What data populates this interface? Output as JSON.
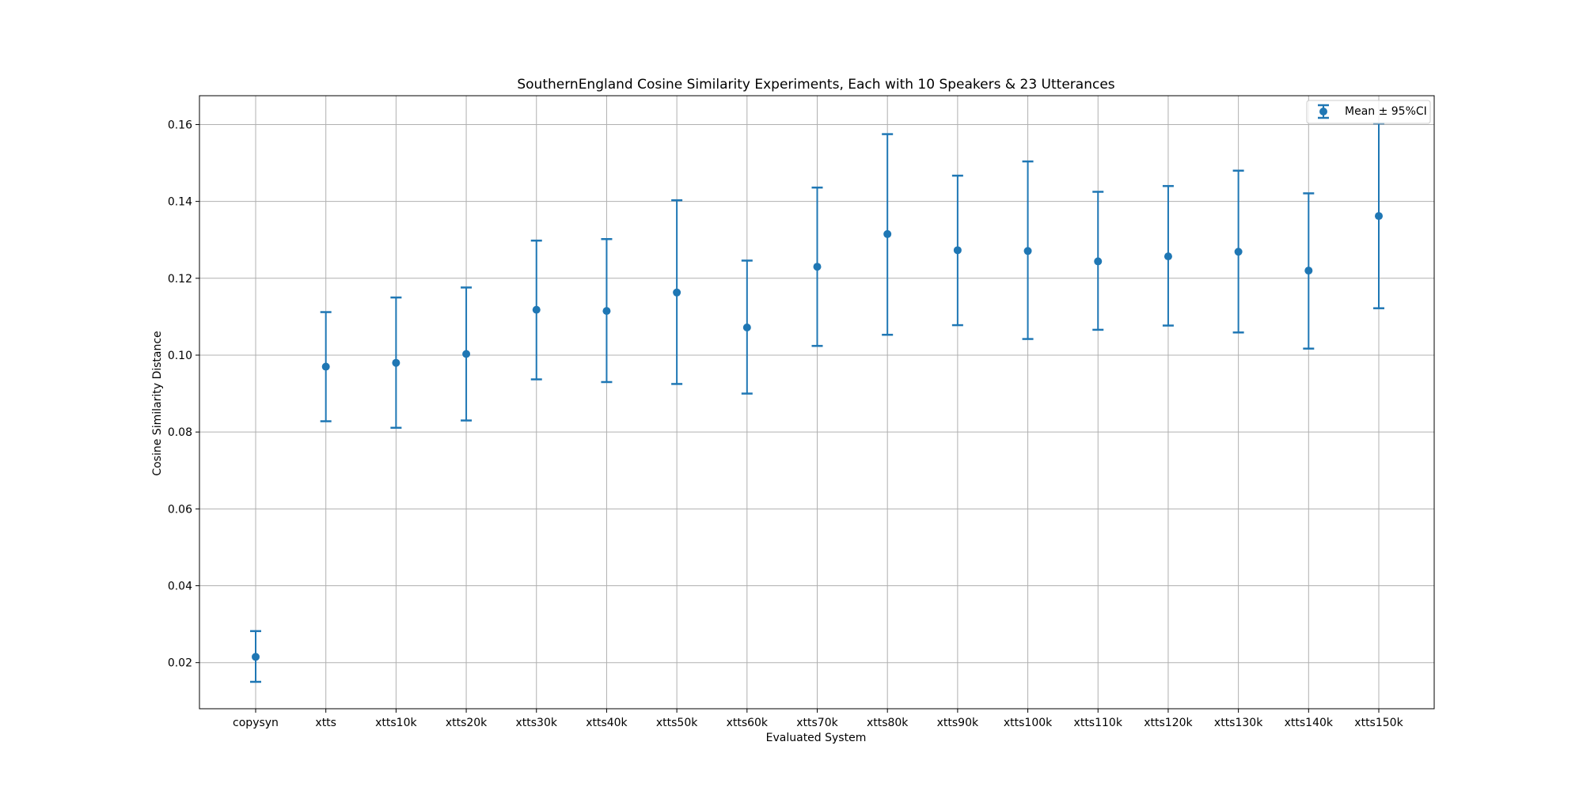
{
  "chart_data": {
    "type": "scatter",
    "title": "SouthernEngland Cosine Similarity Experiments, Each with 10 Speakers & 23 Utterances",
    "xlabel": "Evaluated System",
    "ylabel": "Cosine Similarity Distance",
    "ylim": [
      0.008,
      0.1675
    ],
    "yticks": [
      0.02,
      0.04,
      0.06,
      0.08,
      0.1,
      0.12,
      0.14,
      0.16
    ],
    "ytick_labels": [
      "0.02",
      "0.04",
      "0.06",
      "0.08",
      "0.10",
      "0.12",
      "0.14",
      "0.16"
    ],
    "grid": true,
    "legend_position": "top-right",
    "color": "#1f77b4",
    "categories": [
      "copysyn",
      "xtts",
      "xtts10k",
      "xtts20k",
      "xtts30k",
      "xtts40k",
      "xtts50k",
      "xtts60k",
      "xtts70k",
      "xtts80k",
      "xtts90k",
      "xtts100k",
      "xtts110k",
      "xtts120k",
      "xtts130k",
      "xtts140k",
      "xtts150k"
    ],
    "series": [
      {
        "name": "Mean ± 95%CI",
        "values": [
          0.0215,
          0.097,
          0.098,
          0.1003,
          0.1118,
          0.1115,
          0.1163,
          0.1072,
          0.123,
          0.1315,
          0.1273,
          0.1271,
          0.1244,
          0.1257,
          0.1269,
          0.122,
          0.1362
        ],
        "ci_lower": [
          0.015,
          0.0828,
          0.0811,
          0.083,
          0.0937,
          0.093,
          0.0925,
          0.09,
          0.1024,
          0.1053,
          0.1078,
          0.1042,
          0.1066,
          0.1077,
          0.1059,
          0.1017,
          0.1122
        ],
        "ci_upper": [
          0.0282,
          0.1112,
          0.115,
          0.1176,
          0.1298,
          0.1302,
          0.1403,
          0.1246,
          0.1436,
          0.1575,
          0.1467,
          0.1504,
          0.1425,
          0.144,
          0.148,
          0.1421,
          0.1603
        ]
      }
    ]
  }
}
